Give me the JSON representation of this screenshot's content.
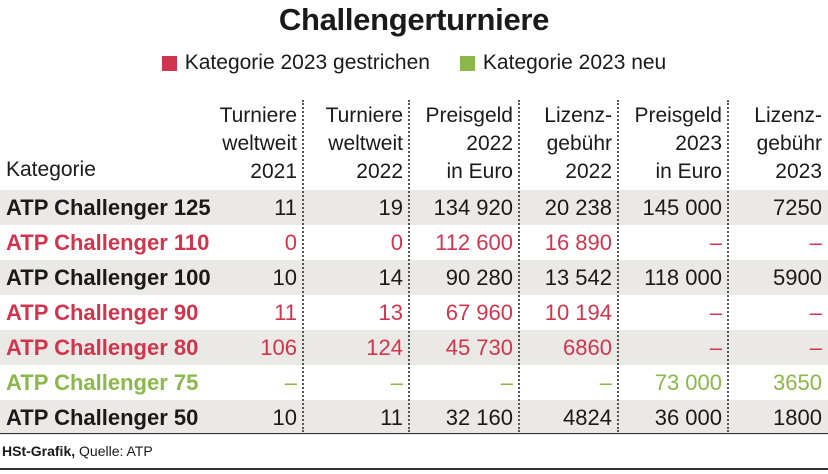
{
  "colors": {
    "removed": "#d0354d",
    "new": "#8ab84a",
    "text": "#1a1a1a",
    "shade": "#ebe9e5"
  },
  "chart_data": {
    "type": "table",
    "title": "Challengerturniere",
    "legend": [
      {
        "label": "Kategorie 2023 gestrichen",
        "color": "#d0354d",
        "status": "removed"
      },
      {
        "label": "Kategorie 2023 neu",
        "color": "#8ab84a",
        "status": "new"
      }
    ],
    "columns": [
      {
        "key": "kategorie",
        "lines": [
          "Kategorie"
        ]
      },
      {
        "key": "t2021",
        "lines": [
          "Turniere",
          "weltweit",
          "2021"
        ]
      },
      {
        "key": "t2022",
        "lines": [
          "Turniere",
          "weltweit",
          "2022"
        ]
      },
      {
        "key": "p2022",
        "lines": [
          "Preisgeld",
          "2022",
          "in Euro"
        ]
      },
      {
        "key": "l2022",
        "lines": [
          "Lizenz-",
          "gebühr",
          "2022"
        ]
      },
      {
        "key": "p2023",
        "lines": [
          "Preisgeld",
          "2023",
          "in Euro"
        ]
      },
      {
        "key": "l2023",
        "lines": [
          "Lizenz-",
          "gebühr",
          "2023"
        ]
      }
    ],
    "rows": [
      {
        "kategorie": "ATP Challenger 125",
        "status": "normal",
        "t2021": "11",
        "t2022": "19",
        "p2022": "134 920",
        "l2022": "20 238",
        "p2023": "145 000",
        "l2023": "7250"
      },
      {
        "kategorie": "ATP Challenger 110",
        "status": "removed",
        "t2021": "0",
        "t2022": "0",
        "p2022": "112 600",
        "l2022": "16 890",
        "p2023": "–",
        "l2023": "–"
      },
      {
        "kategorie": "ATP Challenger 100",
        "status": "normal",
        "t2021": "10",
        "t2022": "14",
        "p2022": "90 280",
        "l2022": "13 542",
        "p2023": "118 000",
        "l2023": "5900"
      },
      {
        "kategorie": "ATP Challenger 90",
        "status": "removed",
        "t2021": "11",
        "t2022": "13",
        "p2022": "67 960",
        "l2022": "10 194",
        "p2023": "–",
        "l2023": "–"
      },
      {
        "kategorie": "ATP Challenger 80",
        "status": "removed",
        "t2021": "106",
        "t2022": "124",
        "p2022": "45 730",
        "l2022": "6860",
        "p2023": "–",
        "l2023": "–"
      },
      {
        "kategorie": "ATP Challenger 75",
        "status": "new",
        "t2021": "–",
        "t2022": "–",
        "p2022": "–",
        "l2022": "–",
        "p2023": "73 000",
        "l2023": "3650"
      },
      {
        "kategorie": "ATP Challenger 50",
        "status": "normal",
        "t2021": "10",
        "t2022": "11",
        "p2022": "32 160",
        "l2022": "4824",
        "p2023": "36 000",
        "l2023": "1800"
      }
    ]
  },
  "source": {
    "credit": "HSt-Grafik,",
    "text": "Quelle: ATP"
  }
}
